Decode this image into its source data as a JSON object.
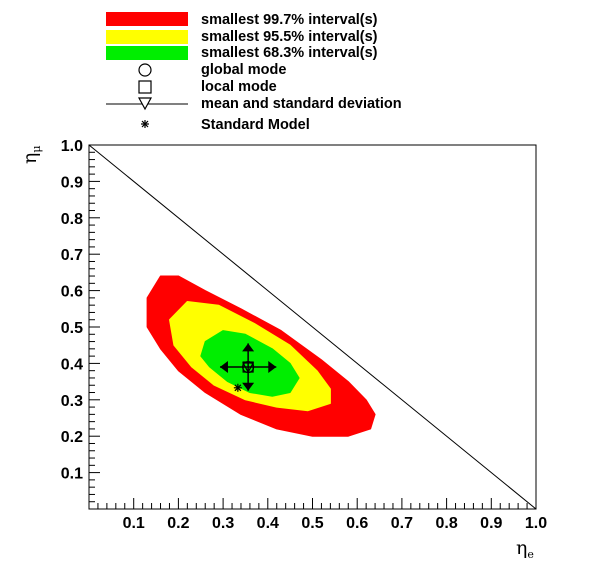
{
  "chart_data": {
    "type": "scatter",
    "xlabel": "η",
    "xlabel_sub": "e",
    "ylabel": "η",
    "ylabel_sub": "μ",
    "xlim": [
      0,
      1
    ],
    "ylim": [
      0,
      1
    ],
    "x_ticks": [
      "0.1",
      "0.2",
      "0.3",
      "0.4",
      "0.5",
      "0.6",
      "0.7",
      "0.8",
      "0.9",
      "1.0"
    ],
    "y_ticks": [
      "0.1",
      "0.2",
      "0.3",
      "0.4",
      "0.5",
      "0.6",
      "0.7",
      "0.8",
      "0.9",
      "1.0"
    ],
    "legend": [
      {
        "label": "smallest 99.7% interval(s)",
        "color": "#ff0000"
      },
      {
        "label": "smallest 95.5% interval(s)",
        "color": "#ffff00"
      },
      {
        "label": "smallest 68.3% interval(s)",
        "color": "#00ee00"
      },
      {
        "label": "global mode",
        "marker": "circle"
      },
      {
        "label": "local mode",
        "marker": "square"
      },
      {
        "label": "mean and standard deviation",
        "marker": "triangle-down-with-line"
      },
      {
        "label": "Standard Model",
        "marker": "asterisk"
      }
    ],
    "regions": [
      {
        "level": "99.7%",
        "color": "#ff0000",
        "polygon": [
          [
            0.16,
            0.64
          ],
          [
            0.2,
            0.64
          ],
          [
            0.26,
            0.6
          ],
          [
            0.34,
            0.55
          ],
          [
            0.43,
            0.49
          ],
          [
            0.52,
            0.41
          ],
          [
            0.58,
            0.35
          ],
          [
            0.62,
            0.3
          ],
          [
            0.64,
            0.26
          ],
          [
            0.63,
            0.22
          ],
          [
            0.58,
            0.2
          ],
          [
            0.5,
            0.2
          ],
          [
            0.42,
            0.22
          ],
          [
            0.34,
            0.26
          ],
          [
            0.26,
            0.32
          ],
          [
            0.2,
            0.38
          ],
          [
            0.16,
            0.44
          ],
          [
            0.13,
            0.5
          ],
          [
            0.13,
            0.58
          ]
        ]
      },
      {
        "level": "95.5%",
        "color": "#ffff00",
        "polygon": [
          [
            0.22,
            0.57
          ],
          [
            0.29,
            0.56
          ],
          [
            0.37,
            0.51
          ],
          [
            0.45,
            0.45
          ],
          [
            0.51,
            0.38
          ],
          [
            0.54,
            0.33
          ],
          [
            0.54,
            0.29
          ],
          [
            0.49,
            0.27
          ],
          [
            0.42,
            0.28
          ],
          [
            0.35,
            0.3
          ],
          [
            0.28,
            0.34
          ],
          [
            0.23,
            0.39
          ],
          [
            0.19,
            0.45
          ],
          [
            0.18,
            0.52
          ]
        ]
      },
      {
        "level": "68.3%",
        "color": "#00ee00",
        "polygon": [
          [
            0.26,
            0.46
          ],
          [
            0.3,
            0.49
          ],
          [
            0.35,
            0.48
          ],
          [
            0.41,
            0.44
          ],
          [
            0.45,
            0.4
          ],
          [
            0.47,
            0.36
          ],
          [
            0.45,
            0.32
          ],
          [
            0.41,
            0.31
          ],
          [
            0.36,
            0.32
          ],
          [
            0.31,
            0.35
          ],
          [
            0.27,
            0.39
          ],
          [
            0.25,
            0.42
          ]
        ]
      }
    ],
    "global_mode": {
      "x": 0.356,
      "y": 0.39
    },
    "local_mode": {
      "x": 0.356,
      "y": 0.39
    },
    "mean": {
      "x": 0.356,
      "y": 0.39,
      "sx": 0.063,
      "sy": 0.065
    },
    "standard_model": {
      "x": 0.333,
      "y": 0.333
    },
    "constraint_line": [
      [
        0.0,
        1.0
      ],
      [
        1.0,
        0.0
      ]
    ]
  }
}
